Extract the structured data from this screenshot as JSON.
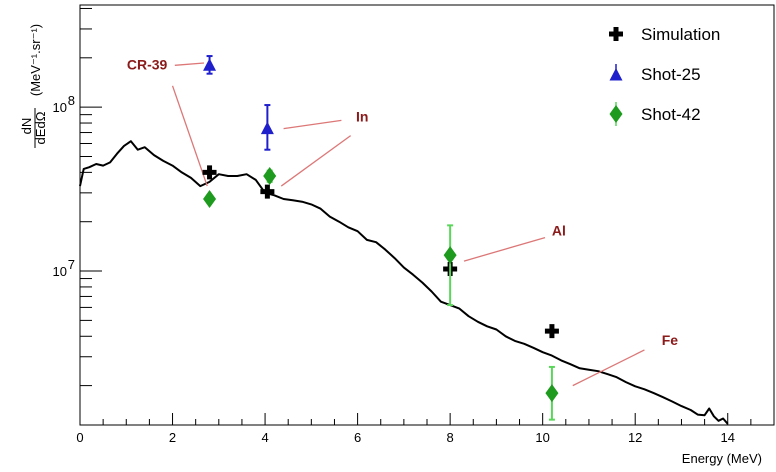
{
  "chart_data": {
    "type": "scatter",
    "title": "",
    "xlabel": "Energy (MeV)",
    "ylabel_top": "dN",
    "ylabel_bottom": "dEdΩ",
    "ylabel_units": "(MeV⁻¹.sr⁻¹)",
    "xlim": [
      0,
      15
    ],
    "ylim": [
      1150000.0,
      420000000.0
    ],
    "yscale": "log",
    "grid": false,
    "legend_position": "top-right",
    "x_ticks": [
      0,
      2,
      4,
      6,
      8,
      10,
      12,
      14
    ],
    "x_tick_labels": [
      "0",
      "2",
      "4",
      "6",
      "8",
      "10",
      "12",
      "14"
    ],
    "y_tick_labels": [
      {
        "value": 10000000.0,
        "base": "10",
        "exp": "7"
      },
      {
        "value": 100000000.0,
        "base": "10",
        "exp": "8"
      }
    ],
    "simulation_curve": [
      [
        0.0,
        33000000.0
      ],
      [
        0.08,
        42000000.0
      ],
      [
        0.2,
        43000000.0
      ],
      [
        0.35,
        45000000.0
      ],
      [
        0.5,
        44000000.0
      ],
      [
        0.65,
        46000000.0
      ],
      [
        0.8,
        52000000.0
      ],
      [
        0.95,
        58000000.0
      ],
      [
        1.1,
        62000000.0
      ],
      [
        1.25,
        55000000.0
      ],
      [
        1.4,
        57000000.0
      ],
      [
        1.6,
        51000000.0
      ],
      [
        1.8,
        47000000.0
      ],
      [
        2.0,
        44000000.0
      ],
      [
        2.2,
        40000000.0
      ],
      [
        2.4,
        37000000.0
      ],
      [
        2.6,
        33000000.0
      ],
      [
        2.8,
        35000000.0
      ],
      [
        3.0,
        39000000.0
      ],
      [
        3.2,
        38000000.0
      ],
      [
        3.4,
        38000000.0
      ],
      [
        3.6,
        39000000.0
      ],
      [
        3.8,
        36000000.0
      ],
      [
        4.0,
        30000000.0
      ],
      [
        4.2,
        29000000.0
      ],
      [
        4.4,
        27500000.0
      ],
      [
        4.6,
        27000000.0
      ],
      [
        4.8,
        26500000.0
      ],
      [
        5.0,
        25500000.0
      ],
      [
        5.2,
        24000000.0
      ],
      [
        5.4,
        21500000.0
      ],
      [
        5.6,
        20000000.0
      ],
      [
        5.8,
        18500000.0
      ],
      [
        6.0,
        17500000.0
      ],
      [
        6.2,
        15500000.0
      ],
      [
        6.4,
        15000000.0
      ],
      [
        6.6,
        13500000.0
      ],
      [
        6.8,
        12000000.0
      ],
      [
        7.0,
        10500000.0
      ],
      [
        7.2,
        9500000.0
      ],
      [
        7.4,
        8500000.0
      ],
      [
        7.6,
        7500000.0
      ],
      [
        7.8,
        6500000.0
      ],
      [
        8.0,
        6200000.0
      ],
      [
        8.2,
        5900000.0
      ],
      [
        8.4,
        5300000.0
      ],
      [
        8.6,
        4900000.0
      ],
      [
        8.8,
        4600000.0
      ],
      [
        9.0,
        4400000.0
      ],
      [
        9.2,
        4000000.0
      ],
      [
        9.4,
        3750000.0
      ],
      [
        9.6,
        3600000.0
      ],
      [
        9.8,
        3400000.0
      ],
      [
        10.0,
        3200000.0
      ],
      [
        10.2,
        3050000.0
      ],
      [
        10.4,
        2850000.0
      ],
      [
        10.6,
        2700000.0
      ],
      [
        10.8,
        2550000.0
      ],
      [
        11.0,
        2500000.0
      ],
      [
        11.2,
        2450000.0
      ],
      [
        11.4,
        2350000.0
      ],
      [
        11.6,
        2250000.0
      ],
      [
        11.8,
        2100000.0
      ],
      [
        12.0,
        1980000.0
      ],
      [
        12.2,
        1900000.0
      ],
      [
        12.4,
        1800000.0
      ],
      [
        12.6,
        1700000.0
      ],
      [
        12.8,
        1600000.0
      ],
      [
        13.0,
        1500000.0
      ],
      [
        13.2,
        1420000.0
      ],
      [
        13.35,
        1330000.0
      ],
      [
        13.5,
        1320000.0
      ],
      [
        13.6,
        1450000.0
      ],
      [
        13.7,
        1300000.0
      ],
      [
        13.8,
        1220000.0
      ],
      [
        13.9,
        1260000.0
      ],
      [
        14.0,
        1170000.0
      ]
    ],
    "series": [
      {
        "name": "Simulation",
        "marker": "cross",
        "color": "#000000",
        "points": [
          {
            "x": 2.8,
            "y": 40000000.0
          },
          {
            "x": 4.05,
            "y": 30500000.0
          },
          {
            "x": 8.0,
            "y": 10300000.0
          },
          {
            "x": 10.2,
            "y": 4300000.0
          }
        ]
      },
      {
        "name": "Shot-25",
        "marker": "triangle",
        "color": "#1f1fcc",
        "points": [
          {
            "x": 2.8,
            "y": 180000000.0,
            "ylo": 160000000.0,
            "yhi": 205000000.0
          },
          {
            "x": 4.05,
            "y": 74000000.0,
            "ylo": 55000000.0,
            "yhi": 103000000.0
          }
        ]
      },
      {
        "name": "Shot-42",
        "marker": "diamond",
        "color": "#1e9b1e",
        "errcolor": "#5ad65a",
        "points": [
          {
            "x": 2.8,
            "y": 27500000.0,
            "ylo": 26000000.0,
            "yhi": 29000000.0
          },
          {
            "x": 4.1,
            "y": 38000000.0,
            "ylo": 35000000.0,
            "yhi": 41000000.0
          },
          {
            "x": 8.0,
            "y": 12500000.0,
            "ylo": 6200000.0,
            "yhi": 19000000.0
          },
          {
            "x": 10.2,
            "y": 1800000.0,
            "ylo": 1240000.0,
            "yhi": 2600000.0
          }
        ]
      }
    ],
    "annotations": [
      {
        "label": "CR-39",
        "text_x": 1.45,
        "text_y": 170000000.0,
        "lines": [
          [
            [
              2.05,
              180000000.0
            ],
            [
              2.68,
              186000000.0
            ]
          ],
          [
            [
              2.0,
              135000000.0
            ],
            [
              2.75,
              33000000.0
            ]
          ]
        ]
      },
      {
        "label": "In",
        "text_x": 6.1,
        "text_y": 82000000.0,
        "lines": [
          [
            [
              5.65,
              83000000.0
            ],
            [
              4.4,
              74000000.0
            ]
          ],
          [
            [
              5.85,
              67000000.0
            ],
            [
              4.35,
              33000000.0
            ]
          ]
        ]
      },
      {
        "label": "Al",
        "text_x": 10.35,
        "text_y": 16500000.0,
        "lines": [
          [
            [
              10.05,
              16000000.0
            ],
            [
              8.3,
              11500000.0
            ]
          ]
        ]
      },
      {
        "label": "Fe",
        "text_x": 12.75,
        "text_y": 3550000.0,
        "lines": [
          [
            [
              12.2,
              3300000.0
            ],
            [
              10.65,
              2000000.0
            ]
          ]
        ]
      }
    ]
  }
}
